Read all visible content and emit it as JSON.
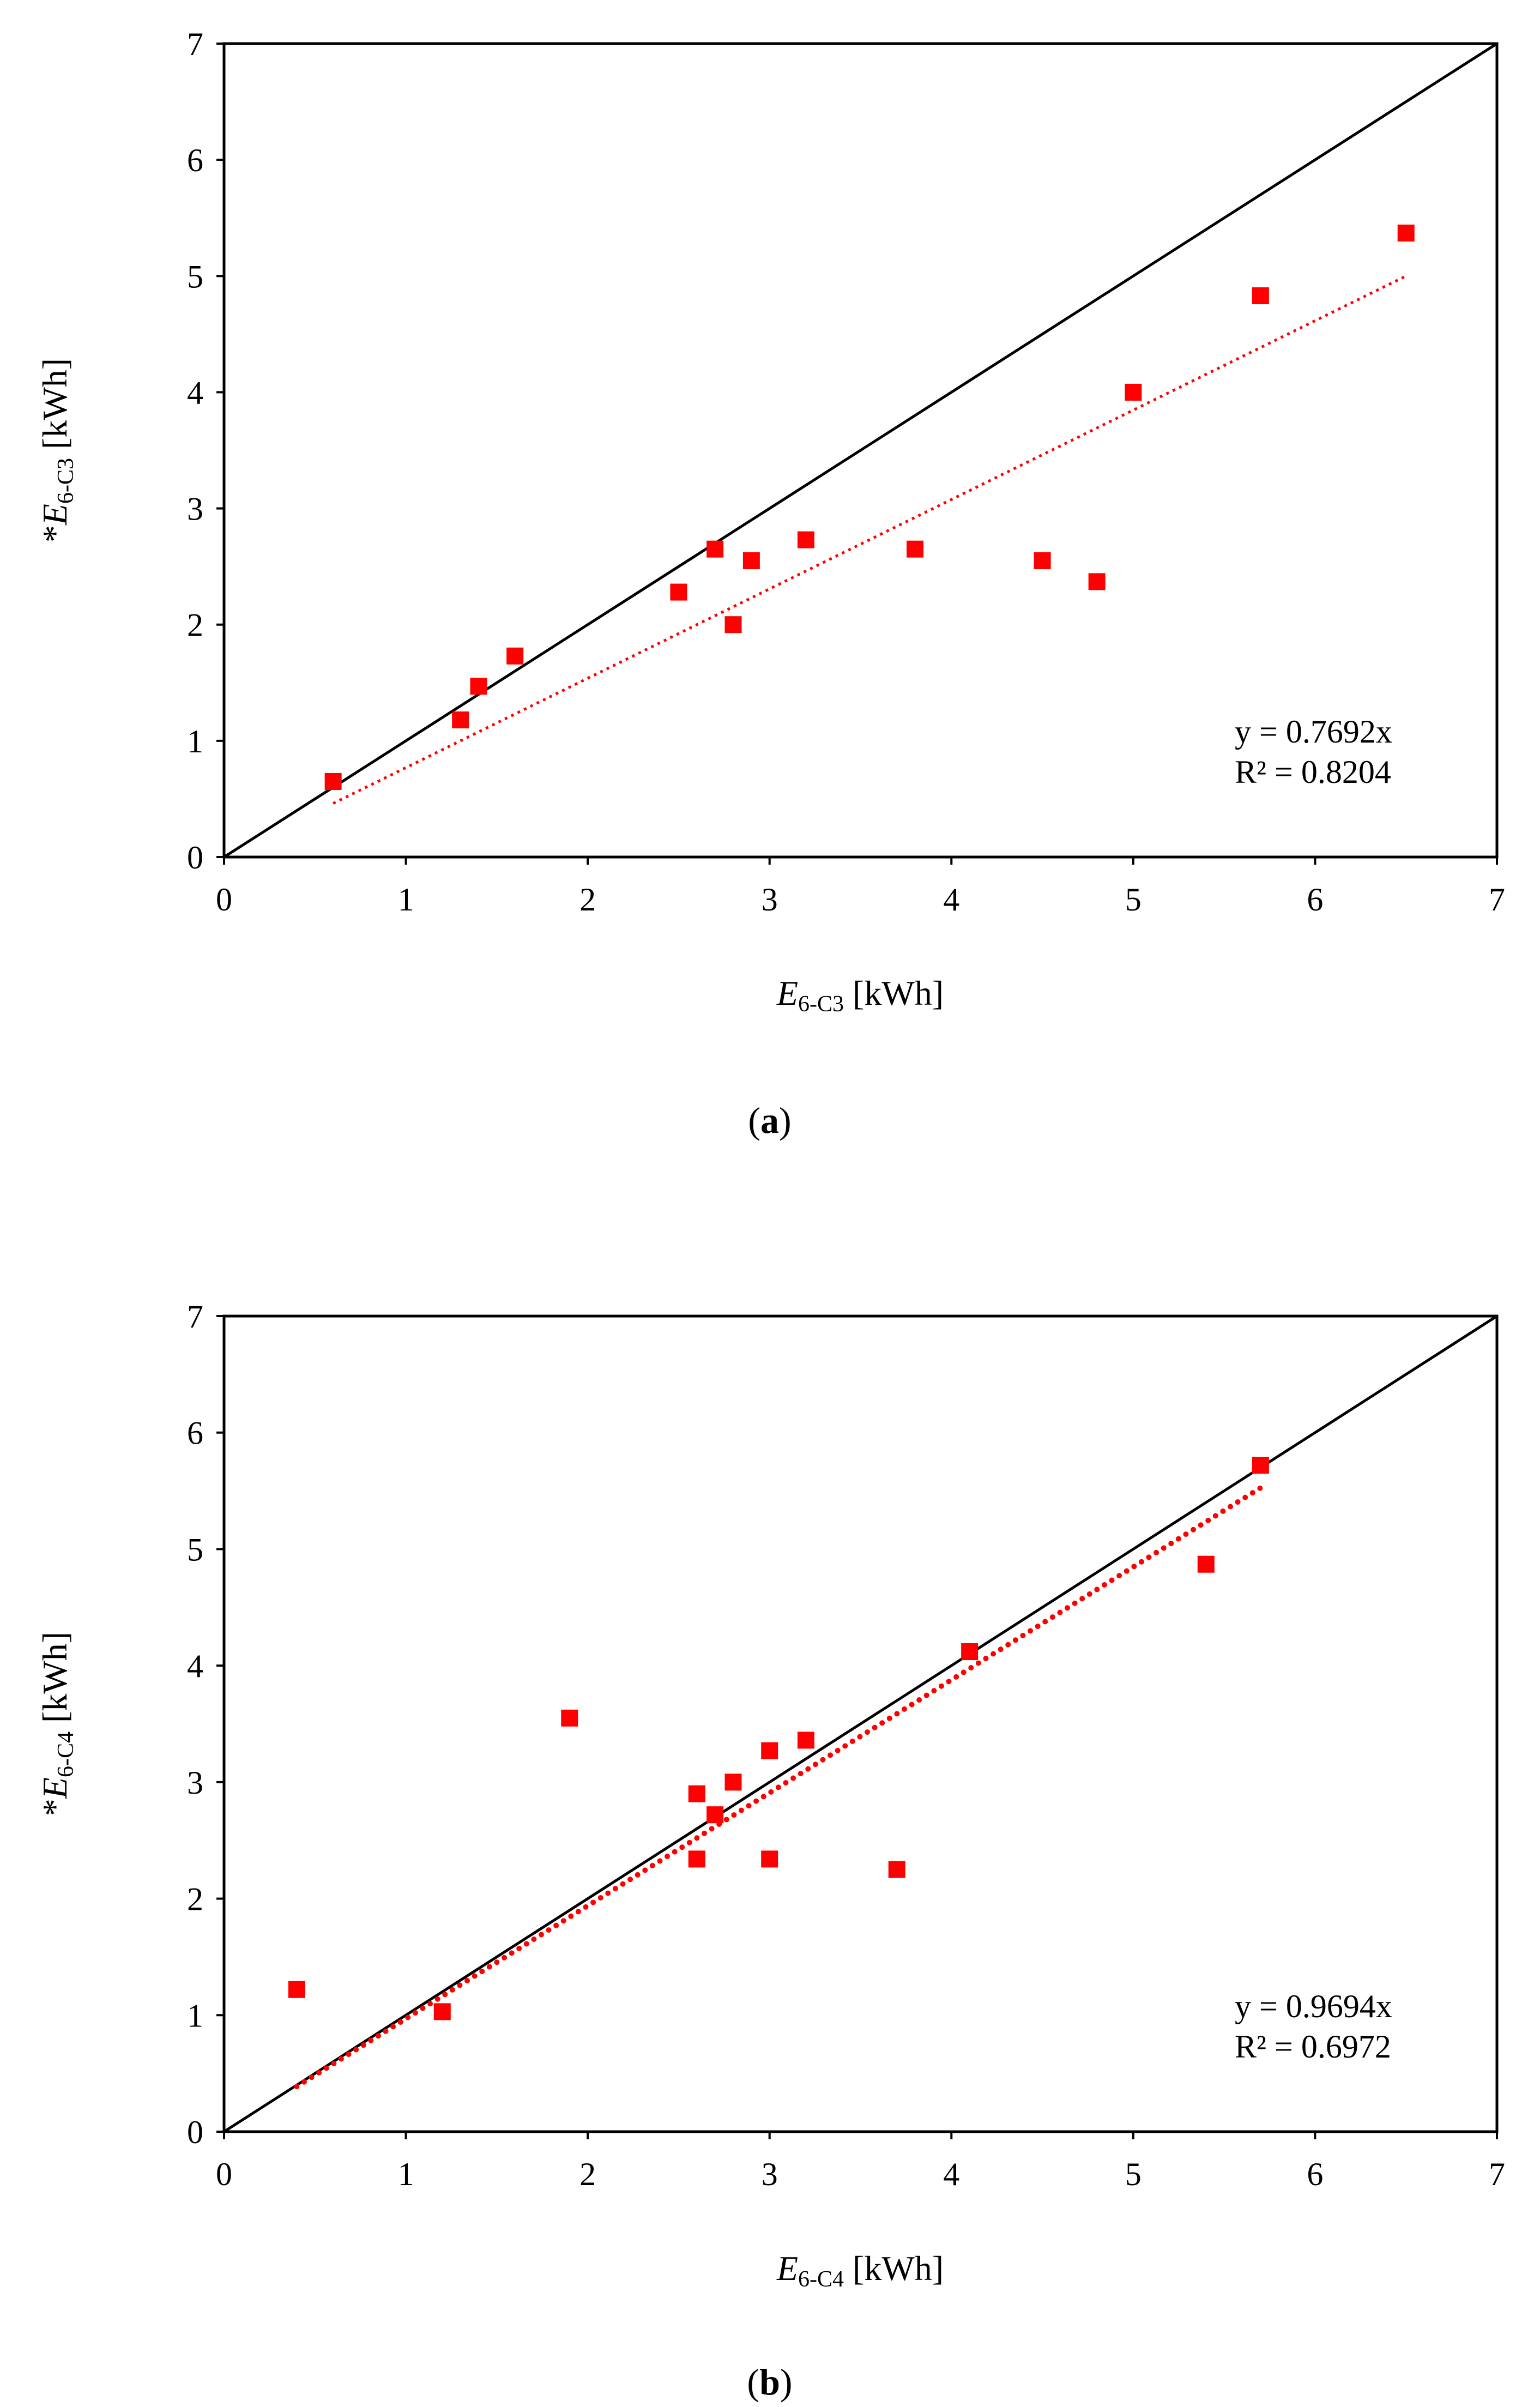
{
  "chart_data": [
    {
      "type": "scatter",
      "panel_open": "(",
      "panel_label": "a",
      "panel_close": ")",
      "x_axis_title": {
        "prefix": "",
        "var": "E",
        "sub": "6-C3",
        "unit": " [kWh]"
      },
      "y_axis_title": {
        "prefix": "*",
        "var": "E",
        "sub": "6-C3",
        "unit": " [kWh]"
      },
      "xlim": [
        0,
        7
      ],
      "ylim": [
        0,
        7
      ],
      "xticks": [
        "0",
        "1",
        "2",
        "3",
        "4",
        "5",
        "6",
        "7"
      ],
      "yticks": [
        "0",
        "1",
        "2",
        "3",
        "4",
        "5",
        "6",
        "7"
      ],
      "grid": false,
      "series": [
        {
          "name": "data",
          "marker": "square",
          "color": "#ff0000",
          "points": [
            [
              0.6,
              0.65
            ],
            [
              1.3,
              1.18
            ],
            [
              1.4,
              1.47
            ],
            [
              1.6,
              1.73
            ],
            [
              2.5,
              2.28
            ],
            [
              2.7,
              2.65
            ],
            [
              2.8,
              2.0
            ],
            [
              2.9,
              2.55
            ],
            [
              3.2,
              2.73
            ],
            [
              3.8,
              2.65
            ],
            [
              4.5,
              2.55
            ],
            [
              4.8,
              2.37
            ],
            [
              5.0,
              4.0
            ],
            [
              5.7,
              4.83
            ],
            [
              6.5,
              5.37
            ]
          ]
        }
      ],
      "identity_line": {
        "from": [
          0,
          0
        ],
        "to": [
          7,
          7
        ],
        "color": "#000000"
      },
      "trendline": {
        "slope": 0.7692,
        "x_from": 0.6,
        "x_to": 6.5,
        "color": "#ff0000",
        "style": "dotted-fine"
      },
      "equation_text": "y = 0.7692x",
      "r2_text": "R² = 0.8204"
    },
    {
      "type": "scatter",
      "panel_open": "(",
      "panel_label": "b",
      "panel_close": ")",
      "x_axis_title": {
        "prefix": "",
        "var": "E",
        "sub": "6-C4",
        "unit": " [kWh]"
      },
      "y_axis_title": {
        "prefix": "*",
        "var": "E",
        "sub": "6-C4",
        "unit": " [kWh]"
      },
      "xlim": [
        0,
        7
      ],
      "ylim": [
        0,
        7
      ],
      "xticks": [
        "0",
        "1",
        "2",
        "3",
        "4",
        "5",
        "6",
        "7"
      ],
      "yticks": [
        "0",
        "1",
        "2",
        "3",
        "4",
        "5",
        "6",
        "7"
      ],
      "grid": false,
      "series": [
        {
          "name": "data",
          "marker": "square",
          "color": "#ff0000",
          "points": [
            [
              0.4,
              1.22
            ],
            [
              1.2,
              1.03
            ],
            [
              1.9,
              3.55
            ],
            [
              2.6,
              2.9
            ],
            [
              2.6,
              2.34
            ],
            [
              2.7,
              2.72
            ],
            [
              2.8,
              3.0
            ],
            [
              3.0,
              3.27
            ],
            [
              3.0,
              2.34
            ],
            [
              3.2,
              3.36
            ],
            [
              3.7,
              2.25
            ],
            [
              4.1,
              4.12
            ],
            [
              5.4,
              4.87
            ],
            [
              5.7,
              5.72
            ]
          ]
        }
      ],
      "identity_line": {
        "from": [
          0,
          0
        ],
        "to": [
          7,
          7
        ],
        "color": "#000000"
      },
      "trendline": {
        "slope": 0.9694,
        "x_from": 0.4,
        "x_to": 5.7,
        "color": "#ff0000",
        "style": "dotted-bold"
      },
      "equation_text": "y = 0.9694x",
      "r2_text": "R² = 0.6972"
    }
  ]
}
